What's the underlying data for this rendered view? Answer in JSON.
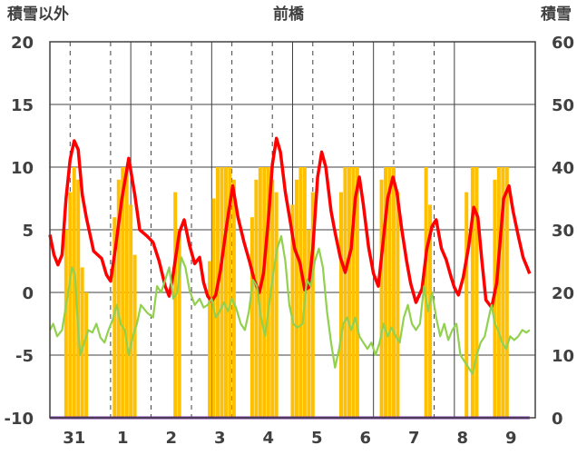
{
  "chart_data": {
    "type": "line+bar",
    "title": "前橋",
    "left_axis_label": "積雪以外",
    "right_axis_label": "積雪",
    "left_ylim": [
      -10,
      20
    ],
    "left_yticks": [
      -10,
      -5,
      0,
      5,
      10,
      15,
      20
    ],
    "right_ylim": [
      0,
      60
    ],
    "right_yticks": [
      0,
      10,
      20,
      30,
      40,
      50,
      60
    ],
    "days": [
      "31",
      "1",
      "2",
      "3",
      "4",
      "5",
      "6",
      "7",
      "8",
      "9"
    ],
    "grid": true,
    "colors": {
      "red_series": "#ff0000",
      "green_series": "#92d050",
      "bars": "#ffc000",
      "purple_series": "#7030a0"
    },
    "series": [
      {
        "style": "line",
        "axis": "left",
        "color": "#ff0000",
        "points": [
          [
            0.0,
            4.6
          ],
          [
            0.1,
            3.0
          ],
          [
            0.2,
            2.2
          ],
          [
            0.3,
            3.0
          ],
          [
            0.4,
            7.5
          ],
          [
            0.5,
            10.6
          ],
          [
            0.6,
            12.1
          ],
          [
            0.7,
            11.4
          ],
          [
            0.8,
            7.8
          ],
          [
            0.9,
            6.0
          ],
          [
            1.0,
            4.5
          ],
          [
            1.08,
            3.3
          ],
          [
            1.28,
            2.7
          ],
          [
            1.4,
            1.4
          ],
          [
            1.5,
            0.9
          ],
          [
            1.62,
            3.5
          ],
          [
            1.78,
            7.5
          ],
          [
            1.95,
            10.7
          ],
          [
            2.1,
            7.8
          ],
          [
            2.22,
            5.0
          ],
          [
            2.4,
            4.5
          ],
          [
            2.55,
            4.0
          ],
          [
            2.7,
            2.5
          ],
          [
            2.85,
            0.5
          ],
          [
            2.95,
            -0.3
          ],
          [
            3.05,
            1.5
          ],
          [
            3.2,
            4.8
          ],
          [
            3.32,
            5.8
          ],
          [
            3.45,
            3.8
          ],
          [
            3.58,
            2.3
          ],
          [
            3.7,
            2.8
          ],
          [
            3.8,
            0.8
          ],
          [
            3.9,
            -0.3
          ],
          [
            4.0,
            -0.7
          ],
          [
            4.1,
            -0.2
          ],
          [
            4.22,
            1.8
          ],
          [
            4.38,
            5.6
          ],
          [
            4.52,
            8.5
          ],
          [
            4.65,
            6.0
          ],
          [
            4.8,
            4.0
          ],
          [
            4.95,
            2.3
          ],
          [
            5.05,
            1.0
          ],
          [
            5.18,
            0.0
          ],
          [
            5.28,
            1.5
          ],
          [
            5.4,
            5.8
          ],
          [
            5.5,
            10.2
          ],
          [
            5.6,
            12.3
          ],
          [
            5.7,
            11.2
          ],
          [
            5.82,
            8.0
          ],
          [
            5.95,
            5.5
          ],
          [
            6.05,
            3.5
          ],
          [
            6.18,
            2.4
          ],
          [
            6.3,
            0.2
          ],
          [
            6.4,
            0.4
          ],
          [
            6.5,
            3.5
          ],
          [
            6.62,
            9.2
          ],
          [
            6.72,
            11.2
          ],
          [
            6.82,
            10.0
          ],
          [
            6.95,
            6.5
          ],
          [
            7.05,
            4.8
          ],
          [
            7.18,
            2.8
          ],
          [
            7.3,
            1.6
          ],
          [
            7.45,
            3.5
          ],
          [
            7.55,
            7.5
          ],
          [
            7.65,
            9.2
          ],
          [
            7.75,
            7.0
          ],
          [
            7.88,
            3.6
          ],
          [
            8.0,
            1.5
          ],
          [
            8.12,
            0.5
          ],
          [
            8.22,
            3.5
          ],
          [
            8.35,
            7.5
          ],
          [
            8.48,
            9.2
          ],
          [
            8.58,
            8.0
          ],
          [
            8.7,
            5.0
          ],
          [
            8.82,
            2.5
          ],
          [
            8.92,
            0.7
          ],
          [
            9.05,
            -0.8
          ],
          [
            9.2,
            0.3
          ],
          [
            9.32,
            3.5
          ],
          [
            9.45,
            5.3
          ],
          [
            9.55,
            5.8
          ],
          [
            9.68,
            3.5
          ],
          [
            9.8,
            2.6
          ],
          [
            9.92,
            1.2
          ],
          [
            10.0,
            0.4
          ],
          [
            10.1,
            -0.2
          ],
          [
            10.22,
            1.2
          ],
          [
            10.35,
            3.6
          ],
          [
            10.48,
            6.8
          ],
          [
            10.58,
            6.0
          ],
          [
            10.68,
            2.5
          ],
          [
            10.78,
            -0.6
          ],
          [
            10.92,
            -1.2
          ],
          [
            11.05,
            0.8
          ],
          [
            11.12,
            3.7
          ],
          [
            11.22,
            7.5
          ],
          [
            11.35,
            8.5
          ],
          [
            11.45,
            6.5
          ],
          [
            11.58,
            4.5
          ],
          [
            11.7,
            2.8
          ],
          [
            11.8,
            2.0
          ],
          [
            11.86,
            1.5
          ]
        ]
      },
      {
        "style": "line",
        "axis": "left",
        "color": "#92d050",
        "points": [
          [
            0.0,
            -3.0
          ],
          [
            0.08,
            -2.5
          ],
          [
            0.18,
            -3.5
          ],
          [
            0.3,
            -3.0
          ],
          [
            0.45,
            0.0
          ],
          [
            0.55,
            2.0
          ],
          [
            0.62,
            1.5
          ],
          [
            0.7,
            -3.0
          ],
          [
            0.75,
            -5.0
          ],
          [
            0.85,
            -4.0
          ],
          [
            0.95,
            -3.0
          ],
          [
            1.05,
            -3.2
          ],
          [
            1.15,
            -2.5
          ],
          [
            1.25,
            -3.6
          ],
          [
            1.35,
            -4.0
          ],
          [
            1.45,
            -3.0
          ],
          [
            1.55,
            -2.2
          ],
          [
            1.65,
            -1.0
          ],
          [
            1.75,
            -2.5
          ],
          [
            1.85,
            -3.0
          ],
          [
            1.95,
            -5.0
          ],
          [
            2.05,
            -3.5
          ],
          [
            2.15,
            -2.5
          ],
          [
            2.25,
            -1.0
          ],
          [
            2.4,
            -1.6
          ],
          [
            2.55,
            -2.0
          ],
          [
            2.65,
            0.5
          ],
          [
            2.75,
            0.0
          ],
          [
            2.85,
            1.0
          ],
          [
            2.95,
            2.0
          ],
          [
            3.05,
            -0.5
          ],
          [
            3.15,
            0.0
          ],
          [
            3.25,
            2.8
          ],
          [
            3.35,
            2.0
          ],
          [
            3.45,
            0.2
          ],
          [
            3.58,
            -1.0
          ],
          [
            3.7,
            -0.5
          ],
          [
            3.8,
            -1.2
          ],
          [
            3.9,
            -1.0
          ],
          [
            4.0,
            -0.5
          ],
          [
            4.1,
            -2.0
          ],
          [
            4.2,
            -1.5
          ],
          [
            4.3,
            -0.8
          ],
          [
            4.4,
            -1.5
          ],
          [
            4.5,
            -0.5
          ],
          [
            4.6,
            -1.2
          ],
          [
            4.72,
            -2.5
          ],
          [
            4.82,
            -3.0
          ],
          [
            4.92,
            -1.5
          ],
          [
            5.02,
            1.0
          ],
          [
            5.12,
            0.5
          ],
          [
            5.22,
            -2.0
          ],
          [
            5.32,
            -3.5
          ],
          [
            5.42,
            -1.0
          ],
          [
            5.52,
            1.5
          ],
          [
            5.62,
            3.5
          ],
          [
            5.72,
            4.5
          ],
          [
            5.82,
            2.5
          ],
          [
            5.92,
            -1.0
          ],
          [
            6.02,
            -2.5
          ],
          [
            6.12,
            -2.8
          ],
          [
            6.25,
            -2.5
          ],
          [
            6.35,
            1.0
          ],
          [
            6.45,
            0.5
          ],
          [
            6.55,
            2.5
          ],
          [
            6.65,
            3.5
          ],
          [
            6.75,
            2.0
          ],
          [
            6.85,
            -1.5
          ],
          [
            6.95,
            -4.0
          ],
          [
            7.05,
            -6.0
          ],
          [
            7.15,
            -4.5
          ],
          [
            7.25,
            -2.5
          ],
          [
            7.35,
            -2.0
          ],
          [
            7.45,
            -3.0
          ],
          [
            7.55,
            -2.0
          ],
          [
            7.65,
            -3.5
          ],
          [
            7.75,
            -4.0
          ],
          [
            7.85,
            -4.5
          ],
          [
            7.95,
            -4.0
          ],
          [
            8.05,
            -5.0
          ],
          [
            8.15,
            -4.0
          ],
          [
            8.25,
            -2.5
          ],
          [
            8.35,
            -3.5
          ],
          [
            8.45,
            -2.8
          ],
          [
            8.55,
            -3.5
          ],
          [
            8.65,
            -4.0
          ],
          [
            8.75,
            -2.0
          ],
          [
            8.85,
            -1.0
          ],
          [
            8.95,
            -2.5
          ],
          [
            9.05,
            -3.0
          ],
          [
            9.15,
            -2.5
          ],
          [
            9.25,
            0.5
          ],
          [
            9.35,
            -1.5
          ],
          [
            9.45,
            0.0
          ],
          [
            9.55,
            -2.0
          ],
          [
            9.65,
            -3.5
          ],
          [
            9.75,
            -2.5
          ],
          [
            9.85,
            -3.8
          ],
          [
            9.95,
            -3.0
          ],
          [
            10.05,
            -2.5
          ],
          [
            10.15,
            -5.0
          ],
          [
            10.25,
            -5.5
          ],
          [
            10.35,
            -6.0
          ],
          [
            10.45,
            -6.5
          ],
          [
            10.55,
            -5.0
          ],
          [
            10.65,
            -4.0
          ],
          [
            10.75,
            -3.5
          ],
          [
            10.85,
            -2.0
          ],
          [
            10.92,
            -1.0
          ],
          [
            11.0,
            -2.5
          ],
          [
            11.08,
            -3.0
          ],
          [
            11.18,
            -4.0
          ],
          [
            11.28,
            -4.5
          ],
          [
            11.38,
            -3.5
          ],
          [
            11.48,
            -3.8
          ],
          [
            11.58,
            -3.5
          ],
          [
            11.68,
            -3.0
          ],
          [
            11.78,
            -3.2
          ],
          [
            11.86,
            -3.0
          ]
        ]
      },
      {
        "style": "line",
        "axis": "left",
        "color": "#7030a0",
        "points": [
          [
            0.0,
            -10.0
          ],
          [
            11.86,
            -10.0
          ]
        ]
      },
      {
        "style": "bar",
        "axis": "right",
        "color": "#ffc000",
        "points": [
          [
            0.4,
            30
          ],
          [
            0.5,
            36
          ],
          [
            0.6,
            40
          ],
          [
            0.7,
            38
          ],
          [
            0.8,
            24
          ],
          [
            0.9,
            20
          ],
          [
            1.6,
            32
          ],
          [
            1.7,
            38
          ],
          [
            1.8,
            40
          ],
          [
            1.9,
            40
          ],
          [
            2.0,
            34
          ],
          [
            2.1,
            26
          ],
          [
            3.1,
            36
          ],
          [
            3.2,
            30
          ],
          [
            3.95,
            25
          ],
          [
            4.05,
            35
          ],
          [
            4.15,
            40
          ],
          [
            4.25,
            40
          ],
          [
            4.35,
            40
          ],
          [
            4.45,
            40
          ],
          [
            4.55,
            38
          ],
          [
            5.0,
            32
          ],
          [
            5.1,
            38
          ],
          [
            5.2,
            40
          ],
          [
            5.3,
            40
          ],
          [
            5.4,
            40
          ],
          [
            5.5,
            38
          ],
          [
            5.6,
            36
          ],
          [
            6.0,
            34
          ],
          [
            6.1,
            38
          ],
          [
            6.2,
            40
          ],
          [
            6.3,
            40
          ],
          [
            6.4,
            30
          ],
          [
            6.5,
            36
          ],
          [
            7.2,
            36
          ],
          [
            7.3,
            40
          ],
          [
            7.4,
            40
          ],
          [
            7.5,
            40
          ],
          [
            7.6,
            40
          ],
          [
            8.2,
            38
          ],
          [
            8.3,
            40
          ],
          [
            8.4,
            40
          ],
          [
            8.5,
            40
          ],
          [
            8.6,
            36
          ],
          [
            9.3,
            40
          ],
          [
            9.4,
            34
          ],
          [
            10.3,
            36
          ],
          [
            10.45,
            40
          ],
          [
            10.55,
            40
          ],
          [
            11.0,
            38
          ],
          [
            11.1,
            40
          ],
          [
            11.2,
            40
          ],
          [
            11.3,
            40
          ]
        ]
      }
    ]
  }
}
